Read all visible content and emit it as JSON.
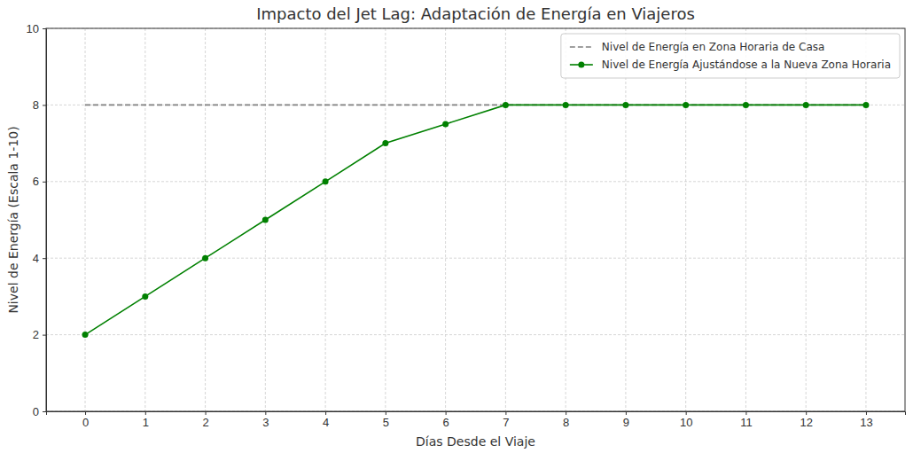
{
  "chart_data": {
    "type": "line",
    "title": "Impacto del Jet Lag: Adaptación de Energía en Viajeros",
    "x_label": "Días Desde el Viaje",
    "y_label": "Nivel de Energía (Escala 1-10)",
    "x": [
      0,
      1,
      2,
      3,
      4,
      5,
      6,
      7,
      8,
      9,
      10,
      11,
      12,
      13
    ],
    "series": [
      {
        "name": "Nivel de Energía en Zona Horaria de Casa",
        "color": "#808080",
        "line_style": "dashed",
        "values": [
          8,
          8,
          8,
          8,
          8,
          8,
          8,
          8,
          8,
          8,
          8,
          8,
          8,
          8
        ]
      },
      {
        "name": "Nivel de Energía Ajustándose a la Nueva Zona Horaria",
        "color": "#008000",
        "line_style": "solid",
        "marker": "circle",
        "values": [
          2,
          3,
          4,
          5,
          6,
          7,
          7.5,
          8,
          8,
          8,
          8,
          8,
          8,
          8
        ]
      }
    ],
    "xlim": [
      -0.65,
      13.65
    ],
    "ylim": [
      0,
      10
    ],
    "xticks": [
      0,
      1,
      2,
      3,
      4,
      5,
      6,
      7,
      8,
      9,
      10,
      11,
      12,
      13
    ],
    "yticks": [
      0,
      2,
      4,
      6,
      8,
      10
    ],
    "grid": true,
    "legend": "upper right"
  }
}
